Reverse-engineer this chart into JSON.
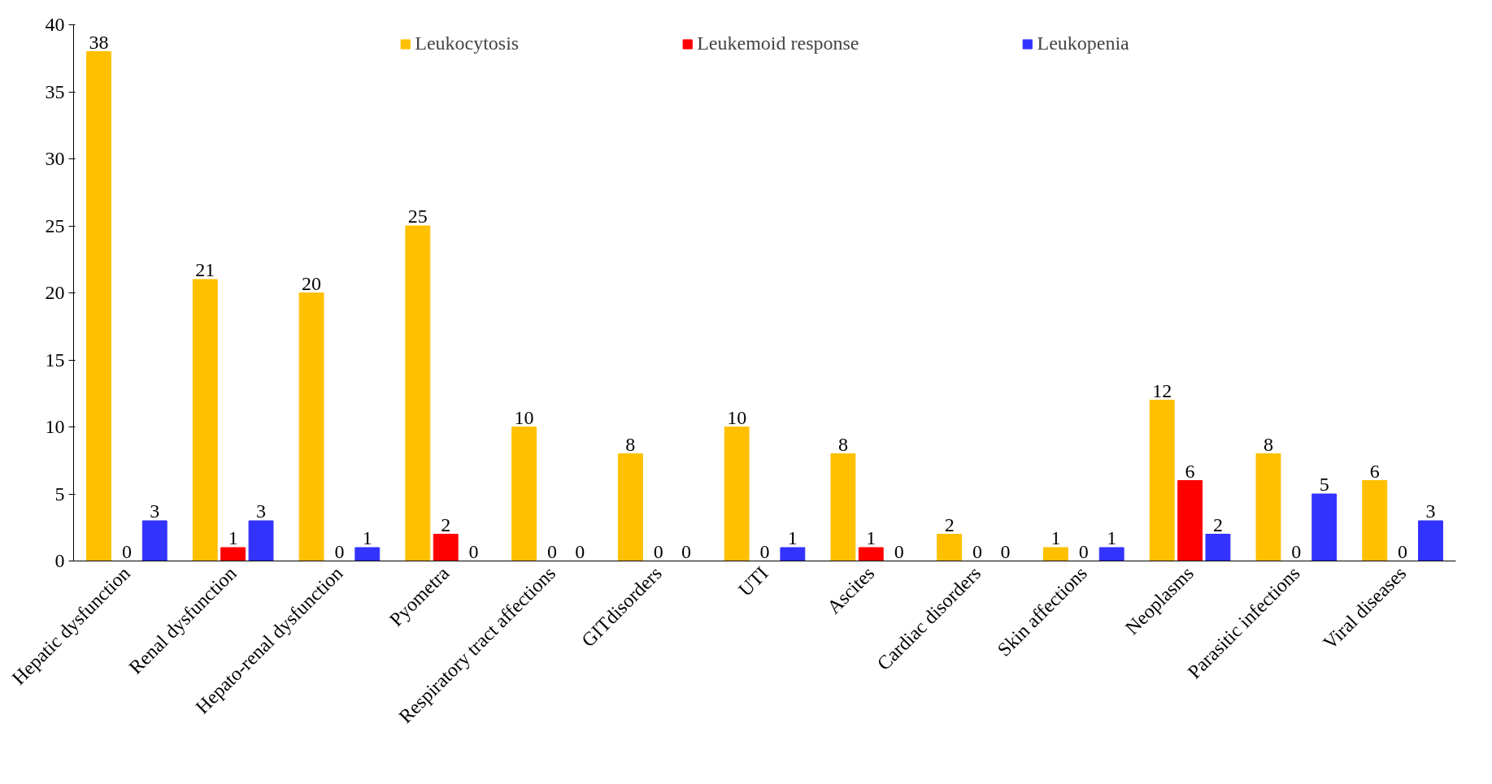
{
  "chart_data": {
    "type": "bar",
    "categories": [
      "Hepatic dysfunction",
      "Renal dysfunction",
      "Hepato-renal dysfunction",
      "Pyometra",
      "Respiratory tract affections",
      "GITdisorders",
      "UTI",
      "Ascites",
      "Cardiac disorders",
      "Skin affections",
      "Neoplasms",
      "Parasitic infections",
      "Viral diseases"
    ],
    "series": [
      {
        "name": "Leukocytosis",
        "color": "#ffc000",
        "values": [
          38,
          21,
          20,
          25,
          10,
          8,
          10,
          8,
          2,
          1,
          12,
          8,
          6
        ]
      },
      {
        "name": "Leukemoid response",
        "color": "#ff0000",
        "values": [
          0,
          1,
          0,
          2,
          0,
          0,
          0,
          1,
          0,
          0,
          6,
          0,
          0
        ]
      },
      {
        "name": "Leukopenia",
        "color": "#3333ff",
        "values": [
          3,
          3,
          1,
          0,
          0,
          0,
          1,
          0,
          0,
          1,
          2,
          5,
          3
        ]
      }
    ],
    "ylim": [
      0,
      40
    ],
    "yticks": [
      0,
      5,
      10,
      15,
      20,
      25,
      30,
      35,
      40
    ],
    "grid": false,
    "legend": "top",
    "data_labels": true
  }
}
